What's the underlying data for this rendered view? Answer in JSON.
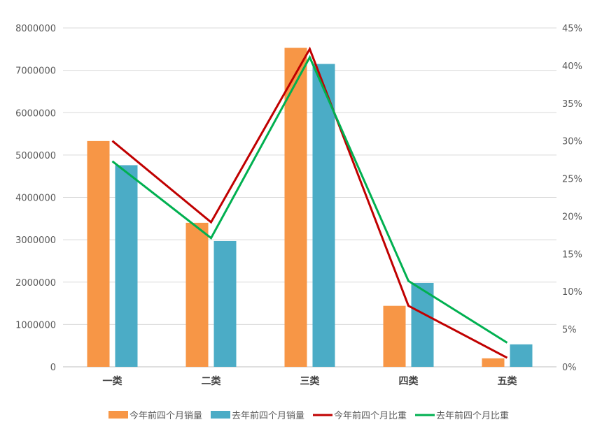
{
  "chart_data": {
    "type": "bar",
    "categories": [
      "一类",
      "二类",
      "三类",
      "四类",
      "五类"
    ],
    "series": [
      {
        "name": "今年前四个月销量",
        "type": "bar",
        "axis": "left",
        "color": "#F79646",
        "values": [
          5330000,
          3400000,
          7530000,
          1440000,
          200000
        ]
      },
      {
        "name": "去年前四个月销量",
        "type": "bar",
        "axis": "left",
        "color": "#4BACC6",
        "values": [
          4760000,
          2970000,
          7150000,
          1980000,
          530000
        ]
      },
      {
        "name": "今年前四个月比重",
        "type": "line",
        "axis": "right",
        "color": "#C00000",
        "values": [
          0.3,
          0.192,
          0.422,
          0.081,
          0.012
        ]
      },
      {
        "name": "去年前四个月比重",
        "type": "line",
        "axis": "right",
        "color": "#00B050",
        "values": [
          0.273,
          0.171,
          0.411,
          0.114,
          0.032
        ]
      }
    ],
    "y_left": {
      "min": 0,
      "max": 8000000,
      "ticks": [
        "0",
        "1000000",
        "2000000",
        "3000000",
        "4000000",
        "5000000",
        "6000000",
        "7000000",
        "8000000"
      ]
    },
    "y_right": {
      "min": 0,
      "max": 0.45,
      "ticks": [
        "0%",
        "5%",
        "10%",
        "15%",
        "20%",
        "25%",
        "30%",
        "35%",
        "40%",
        "45%"
      ]
    },
    "grid": true,
    "legend_position": "bottom"
  }
}
